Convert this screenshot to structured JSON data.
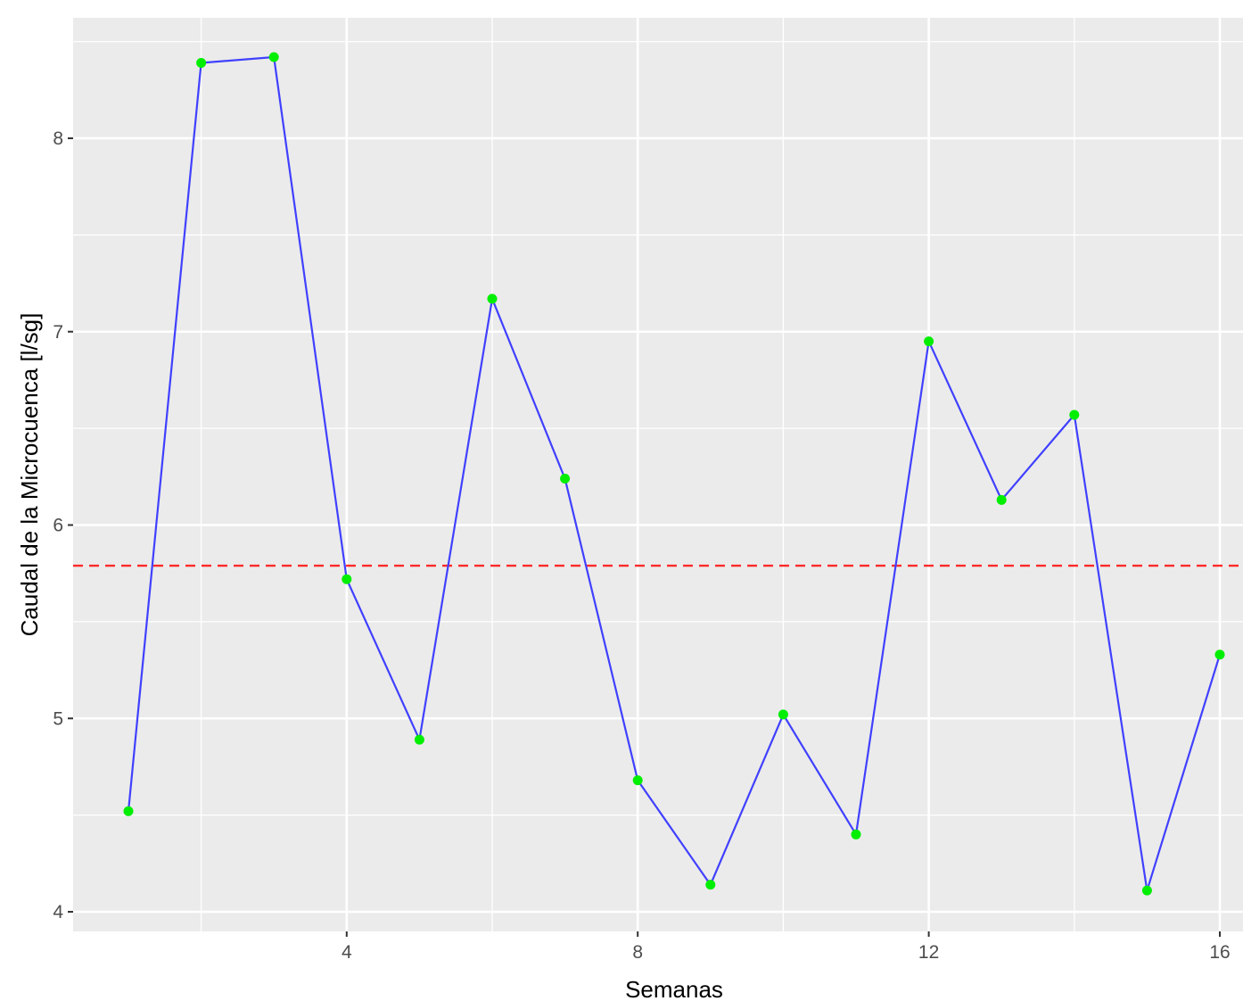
{
  "chart_data": {
    "type": "line",
    "title": "",
    "xlabel": "Semanas",
    "ylabel": "Caudal de la Microcuenca  [l/sg]",
    "xlim": [
      0.6,
      16.4
    ],
    "ylim": [
      3.9,
      8.6
    ],
    "x_ticks": [
      4,
      8,
      12,
      16
    ],
    "y_ticks": [
      4,
      5,
      6,
      7,
      8
    ],
    "grid": true,
    "legend": "none",
    "series": [
      {
        "x": [
          1,
          2,
          3,
          4,
          5,
          6,
          7,
          8,
          9,
          10,
          11,
          12,
          13,
          14,
          15,
          16
        ],
        "values": [
          4.52,
          8.39,
          8.42,
          5.72,
          4.89,
          7.17,
          6.24,
          4.68,
          4.14,
          5.02,
          4.4,
          6.95,
          6.13,
          6.57,
          4.11,
          5.33
        ],
        "line_color": "#4040ff",
        "point_color": "#00ee00"
      }
    ],
    "reference_line": {
      "y": 5.79,
      "color": "#ff2a2a",
      "style": "dashed"
    },
    "panel_background": "#ebebeb",
    "grid_color": "#ffffff"
  }
}
